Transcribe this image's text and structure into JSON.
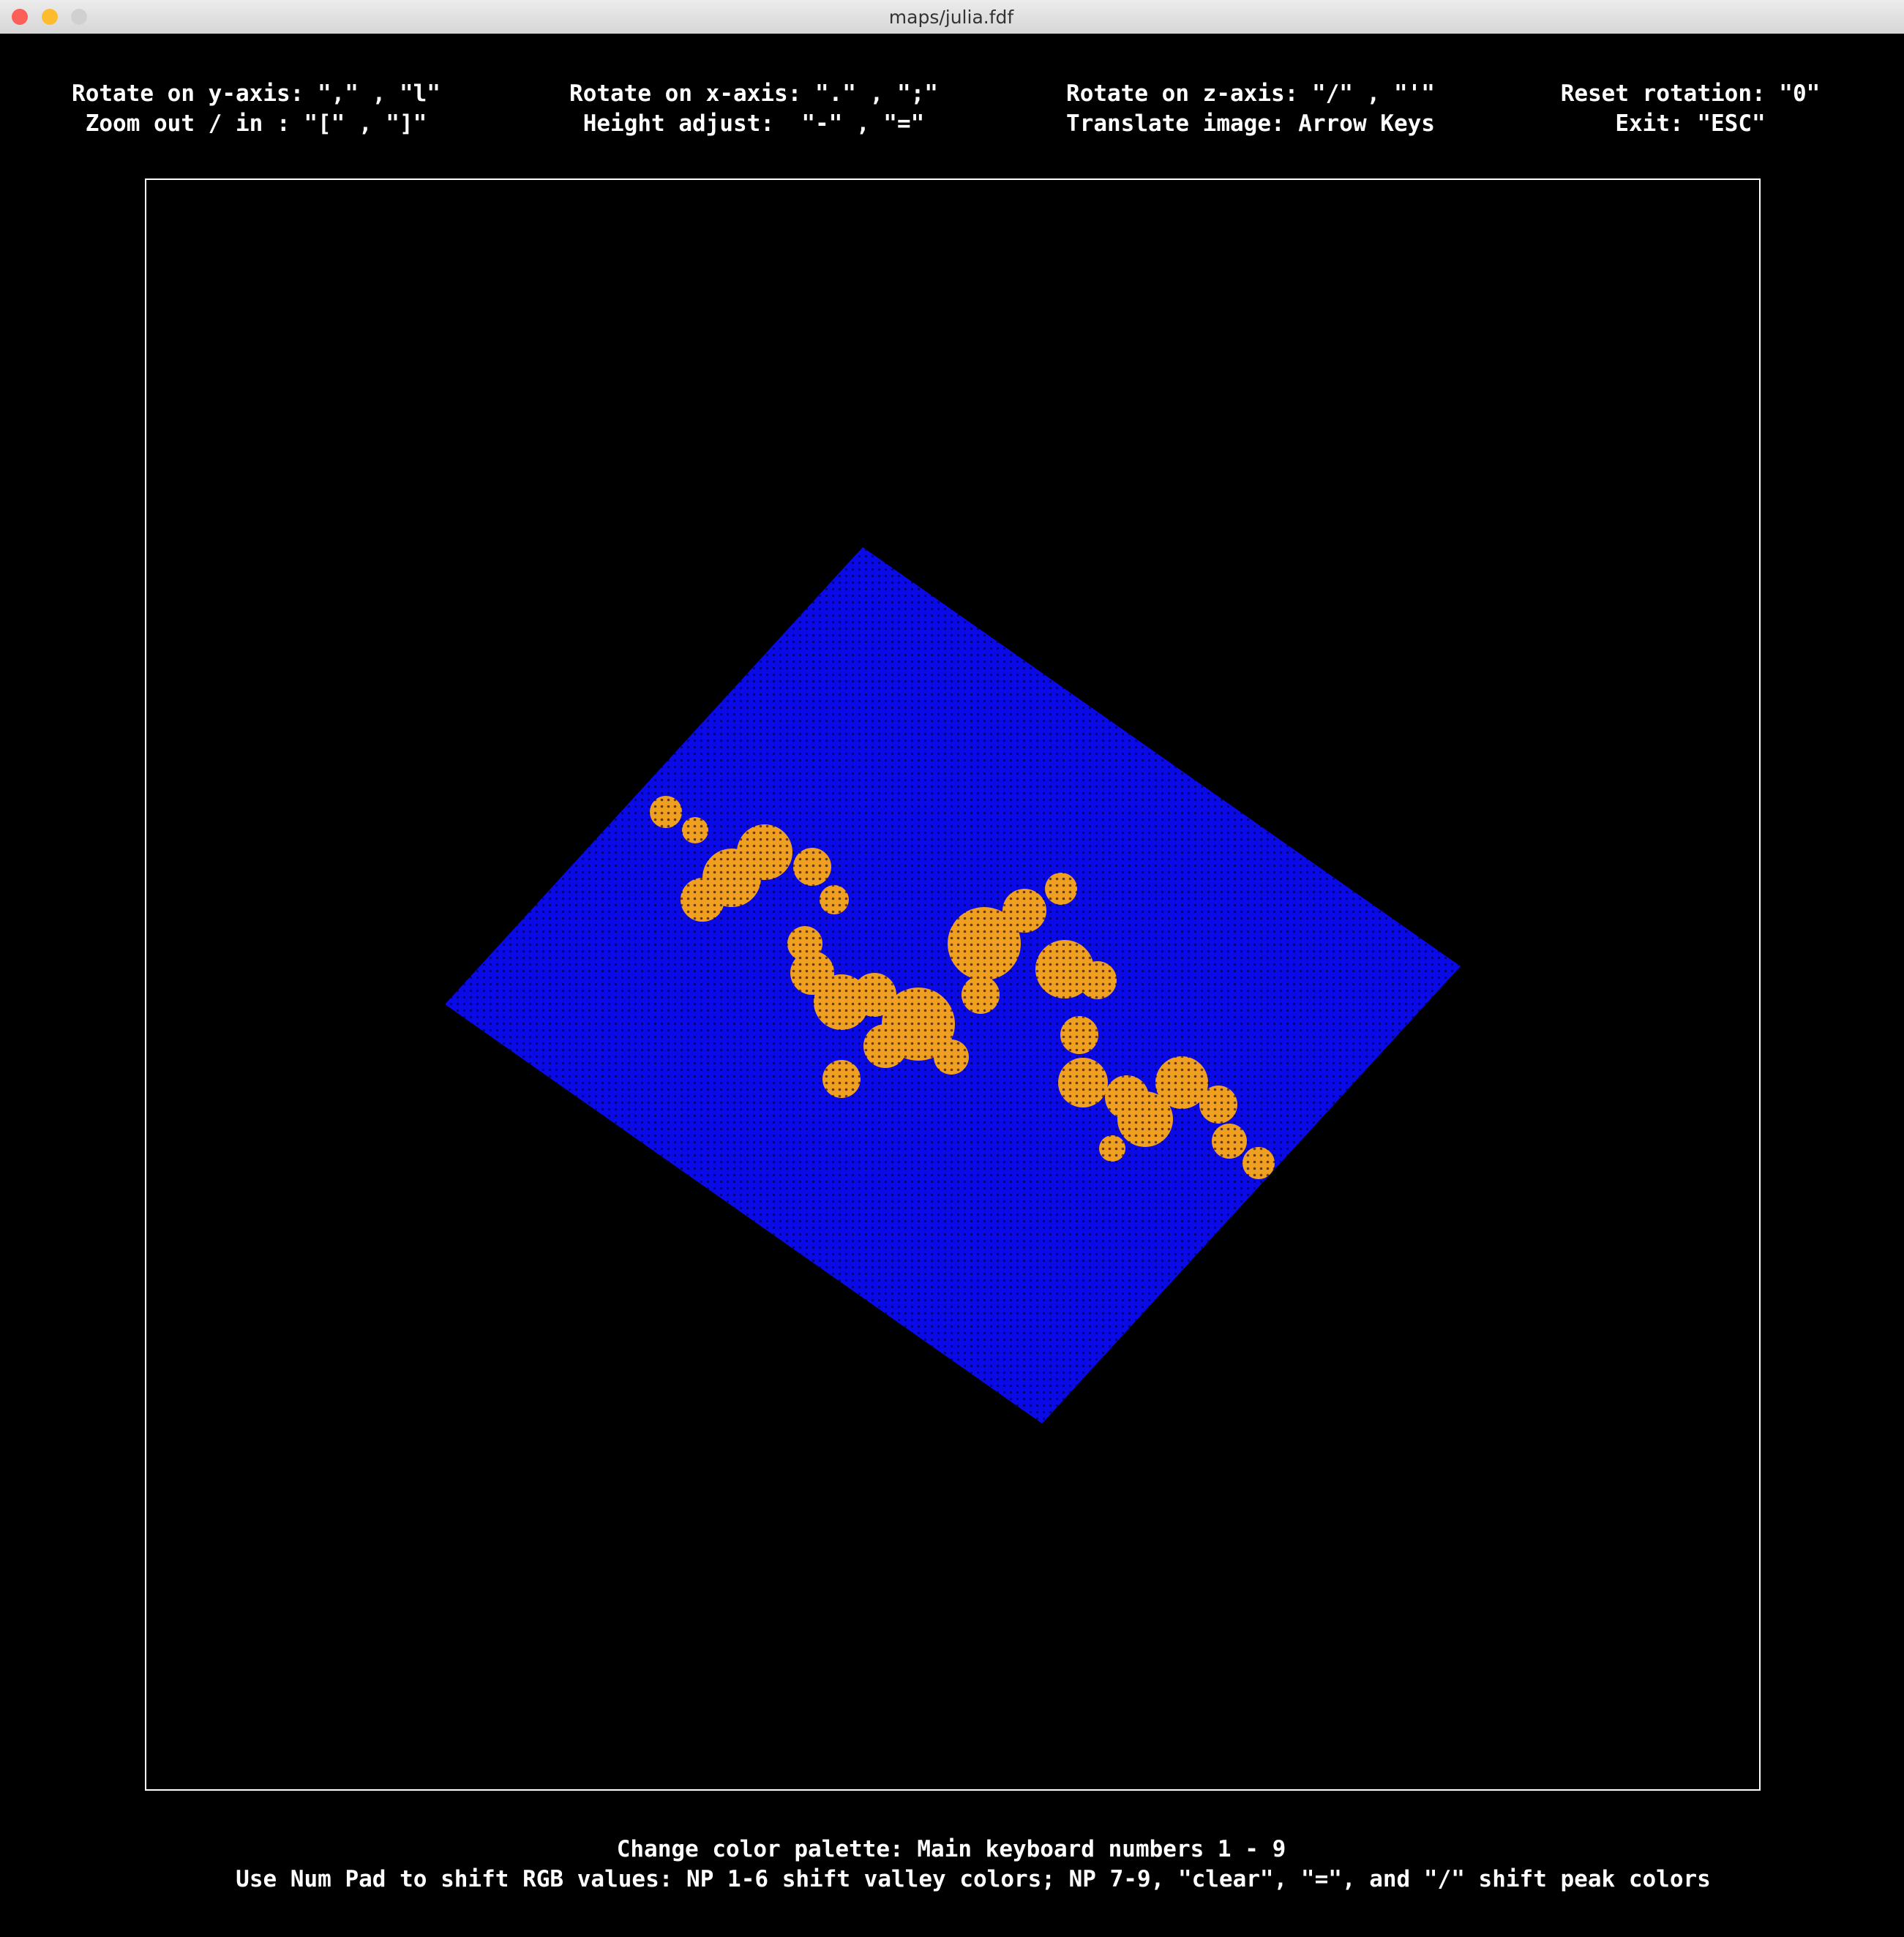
{
  "window": {
    "title": "maps/julia.fdf"
  },
  "controls": [
    [
      "Rotate on y-axis: \",\" , \"l\"",
      "Zoom out / in : \"[\" , \"]\""
    ],
    [
      "Rotate on x-axis: \".\" , \";\"",
      "Height adjust:  \"-\" , \"=\""
    ],
    [
      "Rotate on z-axis: \"/\" , \"'\"",
      "Translate image: Arrow Keys"
    ],
    [
      "Reset rotation: \"0\"",
      "Exit: \"ESC\""
    ]
  ],
  "footer": [
    "Change color palette: Main keyboard numbers 1 - 9",
    "Use Num Pad to shift RGB values: NP 1-6 shift valley colors; NP 7-9, \"clear\", \"=\", and \"/\" shift peak colors"
  ]
}
